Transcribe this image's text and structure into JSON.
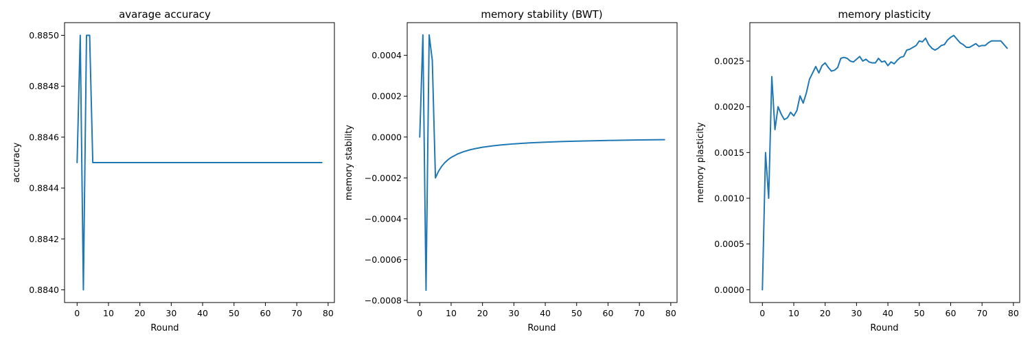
{
  "colors": {
    "series": "#1f77b4",
    "axes": "#000000",
    "background": "#ffffff"
  },
  "chart_data": [
    {
      "type": "line",
      "title": "avarage accuracy",
      "xlabel": "Round",
      "ylabel": "accuracy",
      "xlim": [
        -4,
        82
      ],
      "ylim": [
        0.88395,
        0.88505
      ],
      "xticks": [
        0,
        10,
        20,
        30,
        40,
        50,
        60,
        70,
        80
      ],
      "xtick_labels": [
        "0",
        "10",
        "20",
        "30",
        "40",
        "50",
        "60",
        "70",
        "80"
      ],
      "yticks": [
        0.884,
        0.8842,
        0.8844,
        0.8846,
        0.8848,
        0.885
      ],
      "ytick_labels": [
        "0.8840",
        "0.8842",
        "0.8844",
        "0.8846",
        "0.8848",
        "0.8850"
      ],
      "grid": false,
      "series": [
        {
          "x": [
            0,
            1,
            2,
            3,
            4,
            5,
            78
          ],
          "y": [
            0.8845,
            0.885,
            0.884,
            0.885,
            0.885,
            0.8845,
            0.8845
          ]
        }
      ]
    },
    {
      "type": "line",
      "title": "memory stability (BWT)",
      "xlabel": "Round",
      "ylabel": "memory stability",
      "xlim": [
        -4,
        82
      ],
      "ylim": [
        -0.00081,
        0.00056
      ],
      "xticks": [
        0,
        10,
        20,
        30,
        40,
        50,
        60,
        70,
        80
      ],
      "xtick_labels": [
        "0",
        "10",
        "20",
        "30",
        "40",
        "50",
        "60",
        "70",
        "80"
      ],
      "yticks": [
        -0.0008,
        -0.0006,
        -0.0004,
        -0.0002,
        0,
        0.0002,
        0.0004
      ],
      "ytick_labels": [
        "−0.0008",
        "−0.0006",
        "−0.0004",
        "−0.0002",
        "0.0000",
        "0.0002",
        "0.0004"
      ],
      "grid": false,
      "series": [
        {
          "x": [
            0,
            1,
            2,
            3,
            4,
            5,
            6,
            7,
            8,
            9,
            10,
            12,
            14,
            16,
            18,
            20,
            23,
            26,
            30,
            35,
            40,
            45,
            50,
            55,
            60,
            65,
            70,
            75,
            78
          ],
          "y": [
            0,
            0.0005,
            -0.00075,
            0.0005,
            0.000375,
            -0.0002,
            -0.000167,
            -0.000143,
            -0.000125,
            -0.000111,
            -0.0001,
            -8.33e-05,
            -7.14e-05,
            -6.25e-05,
            -5.56e-05,
            -5e-05,
            -4.35e-05,
            -3.85e-05,
            -3.33e-05,
            -2.86e-05,
            -2.5e-05,
            -2.22e-05,
            -2e-05,
            -1.82e-05,
            -1.67e-05,
            -1.54e-05,
            -1.43e-05,
            -1.33e-05,
            -1.28e-05
          ]
        }
      ]
    },
    {
      "type": "line",
      "title": "memory plasticity",
      "xlabel": "Round",
      "ylabel": "memory plasticity",
      "xlim": [
        -4,
        82
      ],
      "ylim": [
        -0.00014,
        0.00292
      ],
      "xticks": [
        0,
        10,
        20,
        30,
        40,
        50,
        60,
        70,
        80
      ],
      "xtick_labels": [
        "0",
        "10",
        "20",
        "30",
        "40",
        "50",
        "60",
        "70",
        "80"
      ],
      "yticks": [
        0,
        0.0005,
        0.001,
        0.0015,
        0.002,
        0.0025
      ],
      "ytick_labels": [
        "0.0000",
        "0.0005",
        "0.0010",
        "0.0015",
        "0.0020",
        "0.0025"
      ],
      "grid": false,
      "series": [
        {
          "x": [
            0,
            1,
            2,
            3,
            4,
            5,
            6,
            7,
            8,
            9,
            10,
            11,
            12,
            13,
            14,
            15,
            16,
            17,
            18,
            19,
            20,
            21,
            22,
            23,
            24,
            25,
            26,
            27,
            28,
            29,
            30,
            31,
            32,
            33,
            34,
            35,
            36,
            37,
            38,
            39,
            40,
            41,
            42,
            43,
            44,
            45,
            46,
            47,
            48,
            49,
            50,
            51,
            52,
            53,
            54,
            55,
            56,
            57,
            58,
            59,
            60,
            61,
            62,
            63,
            64,
            65,
            66,
            67,
            68,
            69,
            70,
            71,
            72,
            73,
            74,
            75,
            76,
            77,
            78
          ],
          "y": [
            0,
            0.0015,
            0.001,
            0.00233,
            0.00175,
            0.002,
            0.00192,
            0.00186,
            0.00188,
            0.00194,
            0.0019,
            0.00196,
            0.00212,
            0.00204,
            0.00215,
            0.0023,
            0.00237,
            0.00244,
            0.00237,
            0.00245,
            0.00248,
            0.00243,
            0.00239,
            0.0024,
            0.00243,
            0.00253,
            0.00254,
            0.00253,
            0.0025,
            0.00249,
            0.00252,
            0.00255,
            0.0025,
            0.00252,
            0.00249,
            0.00248,
            0.00248,
            0.00253,
            0.00249,
            0.0025,
            0.00245,
            0.00249,
            0.00247,
            0.00251,
            0.00254,
            0.00255,
            0.00262,
            0.00263,
            0.00265,
            0.00267,
            0.00272,
            0.00271,
            0.00275,
            0.00268,
            0.00264,
            0.00262,
            0.00264,
            0.00267,
            0.00268,
            0.00273,
            0.00276,
            0.00278,
            0.00274,
            0.0027,
            0.00268,
            0.00265,
            0.00265,
            0.00267,
            0.00269,
            0.00266,
            0.00267,
            0.00267,
            0.0027,
            0.00272,
            0.00272,
            0.00272,
            0.00272,
            0.00268,
            0.00264
          ]
        }
      ]
    }
  ]
}
